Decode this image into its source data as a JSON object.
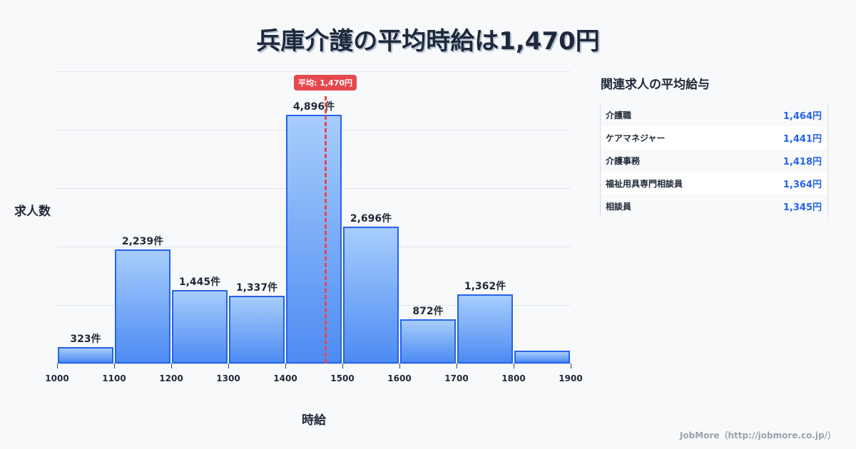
{
  "title": "兵庫介護の平均時給は1,470円",
  "chart_data": {
    "type": "bar",
    "title": "兵庫介護の平均時給は1,470円",
    "xlabel": "時給",
    "ylabel": "求人数",
    "categories": [
      "1000-1100",
      "1100-1200",
      "1200-1300",
      "1300-1400",
      "1400-1500",
      "1500-1600",
      "1600-1700",
      "1700-1800",
      "1800-1900"
    ],
    "bin_edges": [
      1000,
      1100,
      1200,
      1300,
      1400,
      1500,
      1600,
      1700,
      1800,
      1900
    ],
    "values": [
      323,
      2239,
      1445,
      1337,
      4896,
      2696,
      872,
      1362,
      250
    ],
    "value_labels": [
      "323件",
      "2,239件",
      "1,445件",
      "1,337件",
      "4,896件",
      "2,696件",
      "872件",
      "1,362件",
      ""
    ],
    "x_ticks": [
      "1000",
      "1100",
      "1200",
      "1300",
      "1400",
      "1500",
      "1600",
      "1700",
      "1800",
      "1900"
    ],
    "xlim": [
      1000,
      1900
    ],
    "ylim": [
      0,
      5750
    ],
    "grid": true,
    "annotation": {
      "label": "平均: 1,470円",
      "x": 1470,
      "style": "dashed-red-line"
    },
    "bar_color": "#4d8bf3",
    "bar_border": "#2563eb",
    "avg_color": "#e5484d"
  },
  "sidebar": {
    "title": "関連求人の平均給与",
    "rows": [
      {
        "name": "介護職",
        "value": "1,464円"
      },
      {
        "name": "ケアマネジャー",
        "value": "1,441円"
      },
      {
        "name": "介護事務",
        "value": "1,418円"
      },
      {
        "name": "福祉用具専門相談員",
        "value": "1,364円"
      },
      {
        "name": "相談員",
        "value": "1,345円"
      }
    ]
  },
  "footer": "JobMore（http://jobmore.co.jp/）"
}
